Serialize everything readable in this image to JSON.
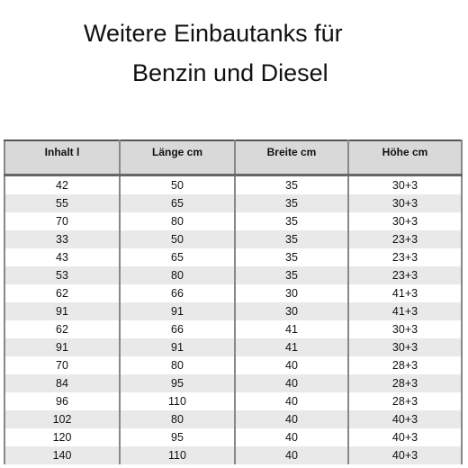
{
  "title": {
    "line1": "Weitere Einbautanks für",
    "line2": "Benzin und Diesel"
  },
  "table": {
    "headers": [
      "Inhalt l",
      "Länge cm",
      "Breite cm",
      "Höhe cm"
    ],
    "rows": [
      [
        "42",
        "50",
        "35",
        "30+3"
      ],
      [
        "55",
        "65",
        "35",
        "30+3"
      ],
      [
        "70",
        "80",
        "35",
        "30+3"
      ],
      [
        "33",
        "50",
        "35",
        "23+3"
      ],
      [
        "43",
        "65",
        "35",
        "23+3"
      ],
      [
        "53",
        "80",
        "35",
        "23+3"
      ],
      [
        "62",
        "66",
        "30",
        "41+3"
      ],
      [
        "91",
        "91",
        "30",
        "41+3"
      ],
      [
        "62",
        "66",
        "41",
        "30+3"
      ],
      [
        "91",
        "91",
        "41",
        "30+3"
      ],
      [
        "70",
        "80",
        "40",
        "28+3"
      ],
      [
        "84",
        "95",
        "40",
        "28+3"
      ],
      [
        "96",
        "110",
        "40",
        "28+3"
      ],
      [
        "102",
        "80",
        "40",
        "40+3"
      ],
      [
        "120",
        "95",
        "40",
        "40+3"
      ],
      [
        "140",
        "110",
        "40",
        "40+3"
      ]
    ]
  }
}
